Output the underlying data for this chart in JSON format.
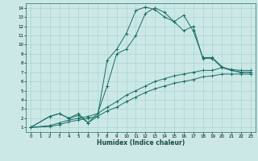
{
  "xlabel": "Humidex (Indice chaleur)",
  "bg_color": "#cce8e6",
  "grid_color": "#a0cfcc",
  "line_color": "#1a6e64",
  "xlim": [
    -0.5,
    23.5
  ],
  "ylim": [
    0.5,
    14.5
  ],
  "xticks": [
    0,
    1,
    2,
    3,
    4,
    5,
    6,
    7,
    8,
    9,
    10,
    11,
    12,
    13,
    14,
    15,
    16,
    17,
    18,
    19,
    20,
    21,
    22,
    23
  ],
  "yticks": [
    1,
    2,
    3,
    4,
    5,
    6,
    7,
    8,
    9,
    10,
    11,
    12,
    13,
    14
  ],
  "series": [
    {
      "x": [
        0,
        2,
        3,
        4,
        5,
        6,
        7,
        8,
        9,
        10,
        11,
        12,
        13,
        14,
        15,
        16,
        17,
        18,
        19,
        20,
        21,
        22,
        23
      ],
      "y": [
        1,
        2.2,
        2.5,
        2.0,
        2.5,
        1.5,
        2.2,
        8.3,
        9.5,
        11.2,
        13.7,
        14.1,
        13.8,
        13.0,
        12.5,
        13.2,
        11.5,
        8.6,
        8.6,
        7.6,
        7.2,
        7.0,
        7.0
      ]
    },
    {
      "x": [
        0,
        2,
        3,
        4,
        5,
        6,
        7,
        8,
        9,
        10,
        11,
        12,
        13,
        14,
        15,
        16,
        17,
        18,
        19,
        20,
        21,
        22,
        23
      ],
      "y": [
        1,
        1.2,
        1.5,
        1.8,
        2.0,
        2.2,
        2.5,
        3.2,
        3.8,
        4.5,
        5.0,
        5.5,
        6.0,
        6.3,
        6.6,
        6.8,
        7.0,
        7.2,
        7.2,
        7.5,
        7.3,
        7.2,
        7.2
      ]
    },
    {
      "x": [
        0,
        2,
        3,
        4,
        5,
        6,
        7,
        8,
        9,
        10,
        11,
        12,
        13,
        14,
        15,
        16,
        17,
        18,
        19,
        20,
        21,
        22,
        23
      ],
      "y": [
        1,
        1.1,
        1.3,
        1.6,
        1.8,
        2.0,
        2.2,
        2.8,
        3.2,
        3.8,
        4.3,
        4.8,
        5.2,
        5.5,
        5.8,
        6.0,
        6.2,
        6.5,
        6.6,
        6.8,
        6.8,
        6.8,
        6.8
      ]
    },
    {
      "x": [
        0,
        2,
        3,
        4,
        5,
        6,
        7,
        8,
        9,
        10,
        11,
        12,
        13,
        14,
        15,
        16,
        17,
        18,
        19,
        20,
        21,
        22,
        23
      ],
      "y": [
        1,
        2.2,
        2.5,
        2.0,
        2.3,
        1.5,
        2.5,
        5.5,
        9.0,
        9.5,
        11.0,
        13.4,
        14.0,
        13.5,
        12.5,
        11.5,
        12.0,
        8.5,
        8.5,
        7.5,
        7.2,
        7.0,
        7.0
      ]
    }
  ]
}
